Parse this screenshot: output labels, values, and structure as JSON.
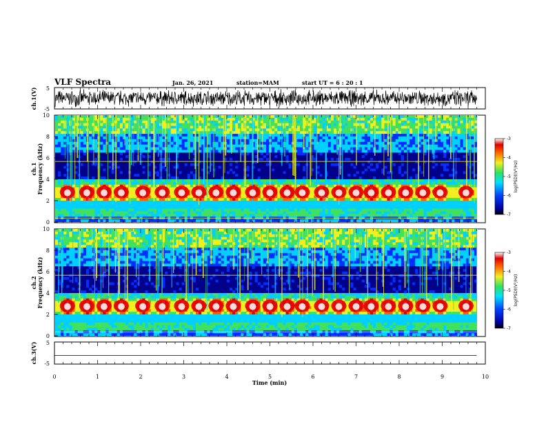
{
  "header": {
    "title": "VLF Spectra",
    "date": "Jan. 26, 2021",
    "station": "station=MAM",
    "start": "start UT = 6 : 20 : 1"
  },
  "colors": {
    "low": "#00008b",
    "mid": "#00d0ff",
    "green": "#40e060",
    "yellow": "#f0f020",
    "high": "#e00000",
    "peak": "#ffffff"
  },
  "chart_data": [
    {
      "type": "line",
      "name": "ch1-waveform",
      "ylabel": "ch.1(V)",
      "ylim": [
        -5,
        5
      ],
      "yticks": [
        "5",
        "-5"
      ],
      "xlim": [
        0,
        10
      ],
      "description_values": {
        "amplitude_min": -5,
        "amplitude_max": 5
      }
    },
    {
      "type": "heatmap",
      "name": "ch1-spectrogram",
      "ylabel": "ch.1\nFrequency (kHz)",
      "ylim": [
        0,
        10
      ],
      "yticks": [
        "0",
        "2",
        "4",
        "6",
        "8",
        "10"
      ],
      "xlim": [
        0,
        10
      ],
      "colorbar": {
        "label": "log(PSD)(V²/Hz)",
        "range": [
          -7,
          -3
        ],
        "ticks": [
          "-3",
          "-4",
          "-5",
          "-6",
          "-7"
        ]
      },
      "bursts_min": [
        0.3,
        0.75,
        1.15,
        1.55,
        2.05,
        2.5,
        2.95,
        3.35,
        3.75,
        4.15,
        4.6,
        5.0,
        5.4,
        5.75,
        6.2,
        6.6,
        7.0,
        7.35,
        7.75,
        8.15,
        8.55,
        8.95,
        9.55
      ],
      "band_khz": [
        2.2,
        3.6
      ]
    },
    {
      "type": "heatmap",
      "name": "ch2-spectrogram",
      "ylabel": "ch.2\nFrequency (kHz)",
      "ylim": [
        0,
        10
      ],
      "yticks": [
        "0",
        "2",
        "4",
        "6",
        "8",
        "10"
      ],
      "xlim": [
        0,
        10
      ],
      "colorbar": {
        "label": "log(PSD)(V²/Hz)",
        "range": [
          -7,
          -3
        ],
        "ticks": [
          "-3",
          "-4",
          "-5",
          "-6",
          "-7"
        ]
      },
      "bursts_min": [
        0.3,
        0.75,
        1.15,
        1.55,
        2.05,
        2.5,
        2.95,
        3.35,
        3.75,
        4.15,
        4.6,
        5.0,
        5.4,
        5.75,
        6.2,
        6.6,
        7.0,
        7.35,
        7.75,
        8.15,
        8.55,
        8.95,
        9.55
      ],
      "band_khz": [
        2.2,
        3.6
      ]
    },
    {
      "type": "line",
      "name": "ch3-waveform",
      "ylabel": "ch.3(V)",
      "ylim": [
        -5,
        5
      ],
      "yticks": [
        "5",
        "-5"
      ],
      "xlim": [
        0,
        10
      ],
      "x": [
        0,
        9.8
      ],
      "y": [
        0,
        0
      ],
      "xlabel": "Time (min)",
      "xticks": [
        "0",
        "1",
        "2",
        "3",
        "4",
        "5",
        "6",
        "7",
        "8",
        "9",
        "10"
      ]
    }
  ]
}
